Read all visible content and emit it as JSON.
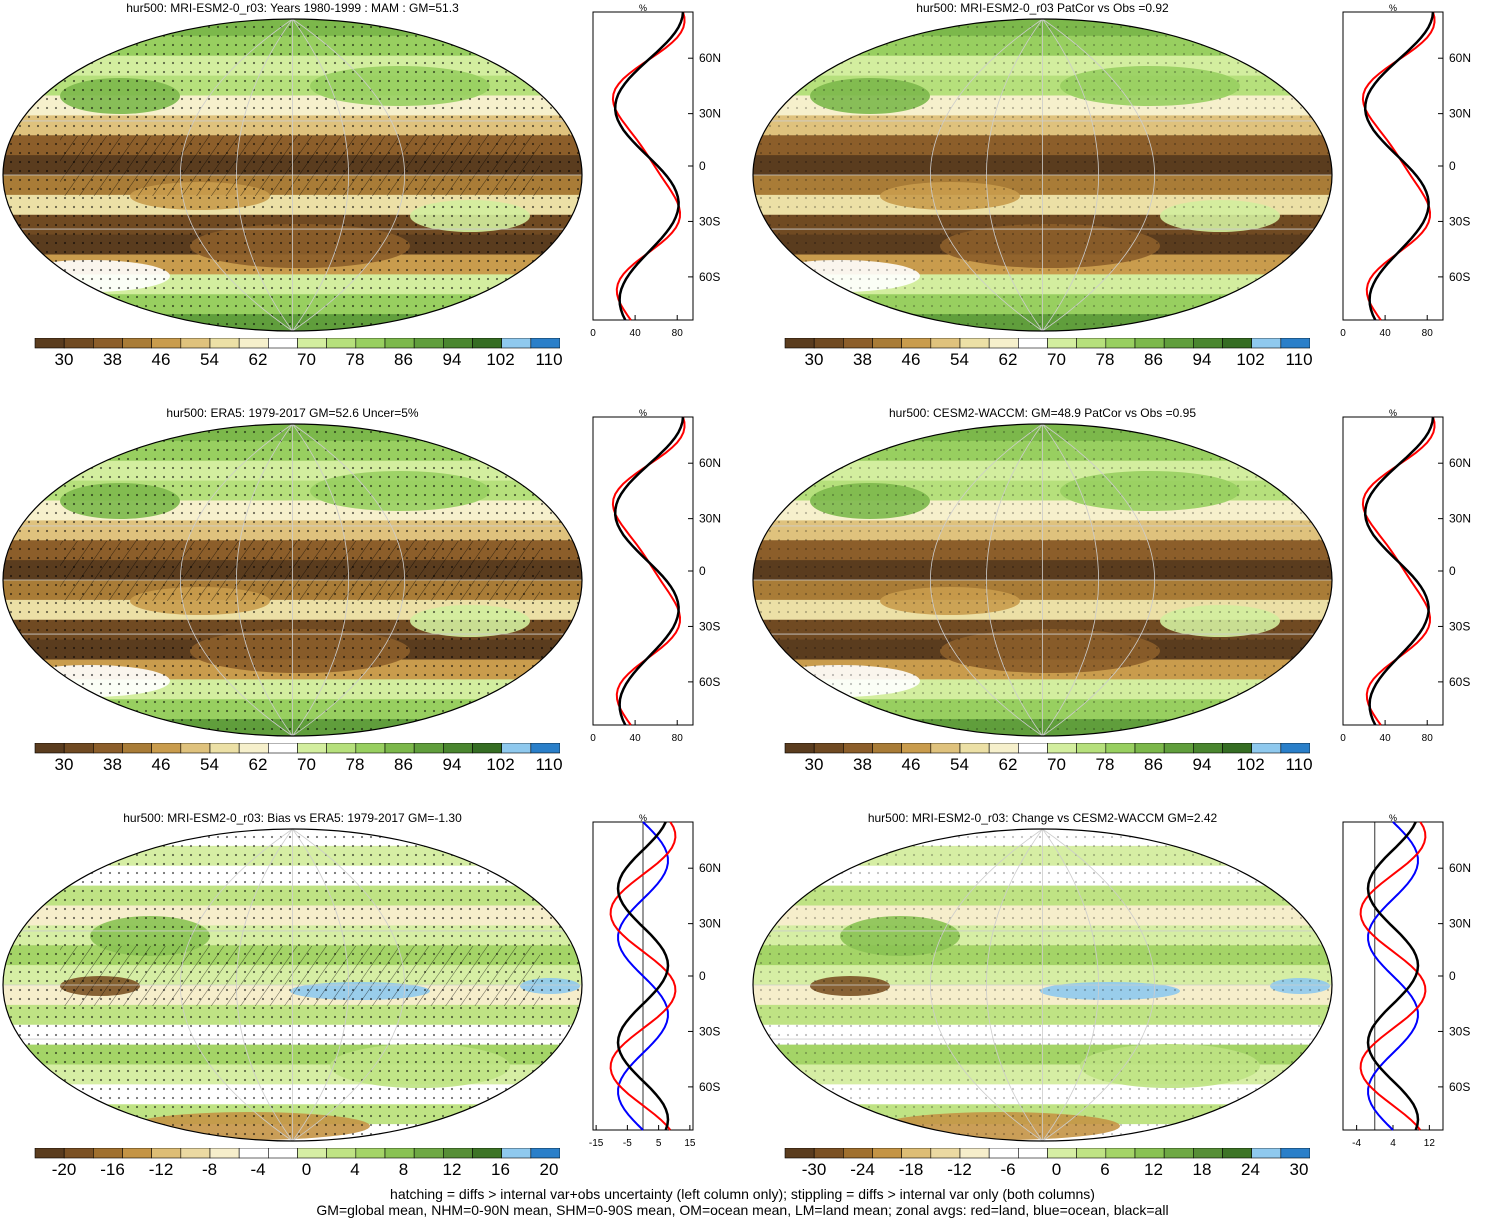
{
  "panels": [
    {
      "id": "p1",
      "title": "hur500: MRI-ESM2-0_r03: Years 1980-1999 : MAM : GM=51.3",
      "palette": "abs",
      "colorbar_labels": [
        "30",
        "38",
        "46",
        "54",
        "62",
        "70",
        "78",
        "86",
        "94",
        "102",
        "110"
      ],
      "zonal": {
        "unit": "%",
        "xticks": [
          "0",
          "40",
          "80"
        ],
        "xrange": [
          0,
          95
        ],
        "lat_labels": [
          "60N",
          "30N",
          "0",
          "30S",
          "60S"
        ],
        "zero_line": false
      }
    },
    {
      "id": "p2",
      "title": "hur500: MRI-ESM2-0_r03 PatCor vs Obs =0.92",
      "palette": "abs",
      "colorbar_labels": [
        "30",
        "38",
        "46",
        "54",
        "62",
        "70",
        "78",
        "86",
        "94",
        "102",
        "110"
      ],
      "zonal": {
        "unit": "%",
        "xticks": [
          "0",
          "40",
          "80"
        ],
        "xrange": [
          0,
          95
        ],
        "lat_labels": [
          "60N",
          "30N",
          "0",
          "30S",
          "60S"
        ],
        "zero_line": false
      }
    },
    {
      "id": "p3",
      "title": "hur500: ERA5: 1979-2017 GM=52.6 Uncer=5%",
      "palette": "abs",
      "colorbar_labels": [
        "30",
        "38",
        "46",
        "54",
        "62",
        "70",
        "78",
        "86",
        "94",
        "102",
        "110"
      ],
      "zonal": {
        "unit": "%",
        "xticks": [
          "0",
          "40",
          "80"
        ],
        "xrange": [
          0,
          95
        ],
        "lat_labels": [
          "60N",
          "30N",
          "0",
          "30S",
          "60S"
        ],
        "zero_line": false
      }
    },
    {
      "id": "p4",
      "title": "hur500: CESM2-WACCM: GM=48.9 PatCor vs Obs =0.95",
      "palette": "abs",
      "colorbar_labels": [
        "30",
        "38",
        "46",
        "54",
        "62",
        "70",
        "78",
        "86",
        "94",
        "102",
        "110"
      ],
      "zonal": {
        "unit": "%",
        "xticks": [
          "0",
          "40",
          "80"
        ],
        "xrange": [
          0,
          95
        ],
        "lat_labels": [
          "60N",
          "30N",
          "0",
          "30S",
          "60S"
        ],
        "zero_line": false
      }
    },
    {
      "id": "p5",
      "title": "hur500: MRI-ESM2-0_r03: Bias vs ERA5: 1979-2017 GM=-1.30",
      "palette": "diff",
      "colorbar_labels": [
        "-20",
        "-16",
        "-12",
        "-8",
        "-4",
        "0",
        "4",
        "8",
        "12",
        "16",
        "20"
      ],
      "zonal": {
        "unit": "%",
        "xticks": [
          "-15",
          "-5",
          "5",
          "15"
        ],
        "xrange": [
          -16,
          16
        ],
        "lat_labels": [
          "60N",
          "30N",
          "0",
          "30S",
          "60S"
        ],
        "zero_line": true
      }
    },
    {
      "id": "p6",
      "title": "hur500: MRI-ESM2-0_r03: Change vs CESM2-WACCM GM=2.42",
      "palette": "diff",
      "colorbar_labels": [
        "-30",
        "-24",
        "-18",
        "-12",
        "-6",
        "0",
        "6",
        "12",
        "18",
        "24",
        "30"
      ],
      "zonal": {
        "unit": "%",
        "xticks": [
          "-4",
          "4",
          "12"
        ],
        "xrange": [
          -7,
          15
        ],
        "lat_labels": [
          "60N",
          "30N",
          "0",
          "30S",
          "60S"
        ],
        "zero_line": true
      }
    }
  ],
  "colors": {
    "abs_palette": [
      "#5a3c1e",
      "#704a22",
      "#8c5e2a",
      "#a97c37",
      "#c99c4d",
      "#dfc27d",
      "#ece0a6",
      "#f6f0cc",
      "#ffffff",
      "#d3ee9f",
      "#b6e07c",
      "#98cf60",
      "#7cb84b",
      "#609e3c",
      "#4a862f",
      "#356d23",
      "#8fc9ee",
      "#2a7fc9"
    ],
    "diff_palette": [
      "#5a3c1e",
      "#7b5124",
      "#a0702e",
      "#c49445",
      "#ddbd75",
      "#ebd9a2",
      "#f6eecb",
      "#ffffff",
      "#ffffff",
      "#d6eea4",
      "#bfe384",
      "#a4d467",
      "#89c253",
      "#6ea844",
      "#568e36",
      "#3d7426",
      "#8fc9ee",
      "#2a7fc9"
    ],
    "line_land": "#ff0000",
    "line_ocean": "#0000ff",
    "line_all": "#000000"
  },
  "footer": {
    "line1": "hatching = diffs > internal var+obs uncertainty (left column only); stippling = diffs > internal var only (both columns)",
    "line2": "GM=global mean, NHM=0-90N mean, SHM=0-90S mean, OM=ocean mean, LM=land mean; zonal avgs: red=land, blue=ocean, black=all"
  }
}
